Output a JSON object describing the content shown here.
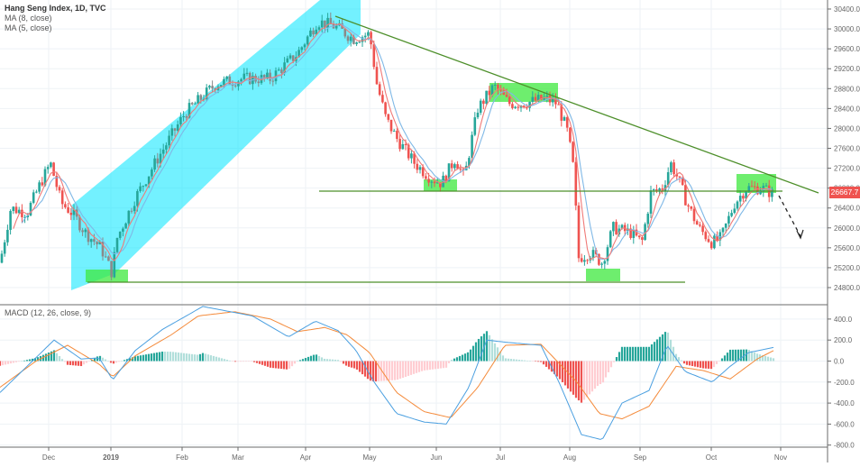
{
  "header": {
    "symbol_title": "Hang Seng Index, 1D, TVC",
    "indicators": [
      "MA (8, close)",
      "MA (5, close)"
    ]
  },
  "macd_pane": {
    "title": "MACD (12, 26, close, 9)"
  },
  "last_price_tag": "26667.7",
  "colors": {
    "up_candle": "#26a69a",
    "down_candle": "#ef5350",
    "ma8": "#7fb8e6",
    "ma5": "#f07a78",
    "channel_fill": "#00e5ff",
    "highlight_box": "#3ee83e",
    "trendline": "#4d8f2a",
    "macd_line": "#4a9fe0",
    "signal_line": "#f48a3a",
    "hist_pos_strong": "#26a69a",
    "hist_pos_weak": "#b2dfdb",
    "hist_neg_strong": "#ef5350",
    "hist_neg_weak": "#ffcdd2",
    "grid": "#eef2f6",
    "axis": "#6b6b6b"
  },
  "chart_data": [
    {
      "type": "candlestick",
      "title": "Hang Seng Index, 1D, TVC",
      "series_overlays": [
        "MA (8, close)",
        "MA (5, close)"
      ],
      "x_tick_labels": [
        "Dec",
        "2019",
        "Feb",
        "Mar",
        "Apr",
        "May",
        "Jun",
        "Jul",
        "Aug",
        "Sep",
        "Oct",
        "Nov"
      ],
      "y_tick_labels": [
        "30400.0",
        "30000.0",
        "29600.0",
        "29200.0",
        "28800.0",
        "28400.0",
        "28000.0",
        "27600.0",
        "27200.0",
        "26800.0",
        "26400.0",
        "26000.0",
        "25600.0",
        "25200.0",
        "24800.0"
      ],
      "ylim": [
        24600,
        30600
      ],
      "last_value": 26667.7,
      "approx_closes_by_month": {
        "Nov-2018": 26500,
        "Dec-2018": 25800,
        "Jan-2019": 27900,
        "Feb-2019": 28800,
        "Mar-2019": 29000,
        "Apr-2019": 29700,
        "May-2019": 27200,
        "Jun-2019": 28500,
        "Jul-2019": 27800,
        "Aug-2019": 25700,
        "Sep-2019": 26100,
        "Oct-2019": 26700
      },
      "annotations": [
        "Ascending parallel channel (cyan) from Dec 2018 to late Apr 2019",
        "Descending trendline from Apr 2019 high (~30300) to ~26750 at end of Oct",
        "Horizontal support ~26750 from May to Nov",
        "Horizontal support ~24950 from Jan to Sep",
        "Green boxes: Jan low, early Jun low, early Jul high, mid Aug low, late Oct consolidation",
        "Dashed black arrow projecting decline toward ~25800"
      ],
      "grid": true
    },
    {
      "type": "macd",
      "title": "MACD (12, 26, close, 9)",
      "y_tick_labels": [
        "400.0",
        "200.0",
        "0.0",
        "-200.0",
        "-400.0",
        "-600.0",
        "-800.0"
      ],
      "ylim": [
        -850,
        520
      ],
      "approx_macd_by_month": {
        "Dec-2018": 50,
        "Jan-2019": -150,
        "Feb-2019": 500,
        "Mar-2019": 400,
        "Apr-2019": 350,
        "May-2019": -200,
        "Jun-2019": -600,
        "Jul-2019": 150,
        "Aug-2019": -650,
        "Sep-2019": 200,
        "Oct-2019": 0,
        "Nov-2019": 130
      },
      "approx_signal_by_month": {
        "Dec-2018": 30,
        "Jan-2019": -100,
        "Feb-2019": 400,
        "Mar-2019": 480,
        "Apr-2019": 300,
        "May-2019": 100,
        "Jun-2019": -500,
        "Jul-2019": 150,
        "Aug-2019": -300,
        "Sep-2019": 50,
        "Oct-2019": -60,
        "Nov-2019": 100
      },
      "grid": true
    }
  ]
}
